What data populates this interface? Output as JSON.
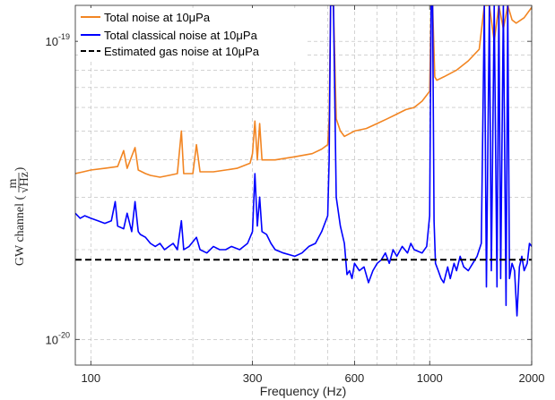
{
  "chart_data": {
    "type": "line",
    "xlabel": "Frequency (Hz)",
    "ylabel": "GW channel",
    "ylabel_unit": {
      "numerator": "m",
      "denominator": "√Hz"
    },
    "x_scale": "log",
    "y_scale": "log",
    "xlim": [
      90,
      2000
    ],
    "ylim": [
      8.2e-21,
      1.32e-19
    ],
    "x_ticks": [
      {
        "value": 100,
        "label": "100"
      },
      {
        "value": 300,
        "label": "300"
      },
      {
        "value": 600,
        "label": "600"
      },
      {
        "value": 1000,
        "label": "1000"
      },
      {
        "value": 2000,
        "label": "2000"
      }
    ],
    "y_ticks": [
      {
        "value": 1e-20,
        "base": "10",
        "exponent": "-20"
      },
      {
        "value": 1e-19,
        "base": "10",
        "exponent": "-19"
      }
    ],
    "grid": true,
    "legend_position": "top-left",
    "series": [
      {
        "name": "Total noise at 10μPa",
        "color": "#f28522",
        "points": [
          [
            90,
            3.6e-20
          ],
          [
            95,
            3.65e-20
          ],
          [
            100,
            3.7e-20
          ],
          [
            110,
            3.75e-20
          ],
          [
            120,
            3.8e-20
          ],
          [
            125,
            4.3e-20
          ],
          [
            128,
            3.75e-20
          ],
          [
            135,
            4.4e-20
          ],
          [
            138,
            3.7e-20
          ],
          [
            145,
            3.6e-20
          ],
          [
            150,
            3.55e-20
          ],
          [
            160,
            3.5e-20
          ],
          [
            170,
            3.55e-20
          ],
          [
            180,
            3.6e-20
          ],
          [
            185,
            5e-20
          ],
          [
            188,
            3.6e-20
          ],
          [
            200,
            3.6e-20
          ],
          [
            205,
            4.5e-20
          ],
          [
            210,
            3.65e-20
          ],
          [
            230,
            3.65e-20
          ],
          [
            250,
            3.7e-20
          ],
          [
            270,
            3.75e-20
          ],
          [
            295,
            3.9e-20
          ],
          [
            300,
            4.2e-20
          ],
          [
            305,
            5.4e-20
          ],
          [
            310,
            4e-20
          ],
          [
            315,
            5.3e-20
          ],
          [
            320,
            4e-20
          ],
          [
            350,
            4e-20
          ],
          [
            400,
            4.1e-20
          ],
          [
            450,
            4.2e-20
          ],
          [
            480,
            4.35e-20
          ],
          [
            500,
            4.5e-20
          ],
          [
            505,
            5.5e-20
          ],
          [
            510,
            1.32e-19
          ],
          [
            520,
            1.32e-19
          ],
          [
            530,
            5.5e-20
          ],
          [
            545,
            5e-20
          ],
          [
            560,
            4.8e-20
          ],
          [
            580,
            4.9e-20
          ],
          [
            600,
            5e-20
          ],
          [
            650,
            5.1e-20
          ],
          [
            700,
            5.3e-20
          ],
          [
            750,
            5.5e-20
          ],
          [
            800,
            5.7e-20
          ],
          [
            850,
            5.9e-20
          ],
          [
            900,
            6e-20
          ],
          [
            950,
            6.3e-20
          ],
          [
            1000,
            6.8e-20
          ],
          [
            1010,
            1.32e-19
          ],
          [
            1020,
            1.32e-19
          ],
          [
            1035,
            7.6e-20
          ],
          [
            1050,
            7.4e-20
          ],
          [
            1100,
            7.6e-20
          ],
          [
            1200,
            8e-20
          ],
          [
            1300,
            8.6e-20
          ],
          [
            1400,
            9.4e-20
          ],
          [
            1450,
            1.32e-19
          ],
          [
            1500,
            1.32e-19
          ],
          [
            1550,
            1e-19
          ],
          [
            1600,
            1.32e-19
          ],
          [
            1650,
            1.1e-19
          ],
          [
            1700,
            1.32e-19
          ],
          [
            1750,
            1.18e-19
          ],
          [
            1800,
            1.15e-19
          ],
          [
            1900,
            1.2e-19
          ],
          [
            2000,
            1.3e-19
          ]
        ]
      },
      {
        "name": "Total classical noise at 10μPa",
        "color": "#0000ff",
        "points": [
          [
            90,
            2.65e-20
          ],
          [
            93,
            2.55e-20
          ],
          [
            96,
            2.6e-20
          ],
          [
            100,
            2.55e-20
          ],
          [
            105,
            2.5e-20
          ],
          [
            110,
            2.45e-20
          ],
          [
            115,
            2.5e-20
          ],
          [
            118,
            2.9e-20
          ],
          [
            120,
            2.4e-20
          ],
          [
            125,
            2.35e-20
          ],
          [
            128,
            2.65e-20
          ],
          [
            132,
            2.3e-20
          ],
          [
            135,
            2.9e-20
          ],
          [
            138,
            2.3e-20
          ],
          [
            140,
            2.25e-20
          ],
          [
            145,
            2.2e-20
          ],
          [
            150,
            2.1e-20
          ],
          [
            155,
            2.05e-20
          ],
          [
            160,
            2.1e-20
          ],
          [
            165,
            2e-20
          ],
          [
            170,
            2.05e-20
          ],
          [
            175,
            2.1e-20
          ],
          [
            180,
            2e-20
          ],
          [
            185,
            2.5e-20
          ],
          [
            188,
            2e-20
          ],
          [
            195,
            2.05e-20
          ],
          [
            205,
            2.2e-20
          ],
          [
            210,
            2e-20
          ],
          [
            220,
            1.95e-20
          ],
          [
            230,
            2.05e-20
          ],
          [
            240,
            2e-20
          ],
          [
            250,
            2e-20
          ],
          [
            260,
            2.05e-20
          ],
          [
            275,
            2e-20
          ],
          [
            290,
            2.1e-20
          ],
          [
            300,
            2.3e-20
          ],
          [
            305,
            3.6e-20
          ],
          [
            310,
            2.4e-20
          ],
          [
            315,
            3e-20
          ],
          [
            320,
            2.3e-20
          ],
          [
            330,
            2.25e-20
          ],
          [
            340,
            2.1e-20
          ],
          [
            350,
            2e-20
          ],
          [
            370,
            1.95e-20
          ],
          [
            400,
            1.9e-20
          ],
          [
            420,
            1.95e-20
          ],
          [
            440,
            2.05e-20
          ],
          [
            460,
            2.1e-20
          ],
          [
            480,
            2.3e-20
          ],
          [
            500,
            2.6e-20
          ],
          [
            505,
            4e-20
          ],
          [
            510,
            1.32e-19
          ],
          [
            520,
            1.32e-19
          ],
          [
            530,
            3e-20
          ],
          [
            545,
            2.4e-20
          ],
          [
            560,
            2.1e-20
          ],
          [
            570,
            1.65e-20
          ],
          [
            580,
            1.7e-20
          ],
          [
            590,
            1.6e-20
          ],
          [
            600,
            1.8e-20
          ],
          [
            620,
            1.7e-20
          ],
          [
            640,
            1.75e-20
          ],
          [
            660,
            1.55e-20
          ],
          [
            680,
            1.7e-20
          ],
          [
            700,
            1.8e-20
          ],
          [
            720,
            1.85e-20
          ],
          [
            740,
            1.95e-20
          ],
          [
            760,
            1.8e-20
          ],
          [
            780,
            2e-20
          ],
          [
            800,
            1.9e-20
          ],
          [
            830,
            2.05e-20
          ],
          [
            860,
            1.95e-20
          ],
          [
            880,
            2.1e-20
          ],
          [
            900,
            2e-20
          ],
          [
            950,
            1.95e-20
          ],
          [
            980,
            2.05e-20
          ],
          [
            1000,
            2.6e-20
          ],
          [
            1010,
            1.32e-19
          ],
          [
            1020,
            1.32e-19
          ],
          [
            1030,
            2.5e-20
          ],
          [
            1040,
            1.8e-20
          ],
          [
            1060,
            1.7e-20
          ],
          [
            1080,
            1.6e-20
          ],
          [
            1100,
            1.55e-20
          ],
          [
            1130,
            1.75e-20
          ],
          [
            1150,
            1.6e-20
          ],
          [
            1180,
            1.8e-20
          ],
          [
            1200,
            1.7e-20
          ],
          [
            1230,
            1.9e-20
          ],
          [
            1260,
            1.75e-20
          ],
          [
            1300,
            1.7e-20
          ],
          [
            1340,
            1.8e-20
          ],
          [
            1380,
            1.9e-20
          ],
          [
            1420,
            2.1e-20
          ],
          [
            1450,
            1.32e-19
          ],
          [
            1470,
            1.5e-20
          ],
          [
            1500,
            1.32e-19
          ],
          [
            1520,
            1.7e-20
          ],
          [
            1550,
            1.32e-19
          ],
          [
            1580,
            1.5e-20
          ],
          [
            1600,
            1.32e-19
          ],
          [
            1620,
            1.6e-20
          ],
          [
            1650,
            1.32e-19
          ],
          [
            1680,
            1.3e-20
          ],
          [
            1700,
            1.32e-19
          ],
          [
            1720,
            1.6e-20
          ],
          [
            1750,
            1.8e-20
          ],
          [
            1780,
            1.7e-20
          ],
          [
            1810,
            1.2e-20
          ],
          [
            1840,
            1.75e-20
          ],
          [
            1870,
            1.9e-20
          ],
          [
            1900,
            1.7e-20
          ],
          [
            1940,
            1.8e-20
          ],
          [
            1970,
            2.1e-20
          ],
          [
            2000,
            2.05e-20
          ]
        ]
      },
      {
        "name": "Estimated gas noise at 10μPa",
        "color": "#000000",
        "dashed": true,
        "points": [
          [
            90,
            1.85e-20
          ],
          [
            2000,
            1.85e-20
          ]
        ]
      }
    ]
  }
}
